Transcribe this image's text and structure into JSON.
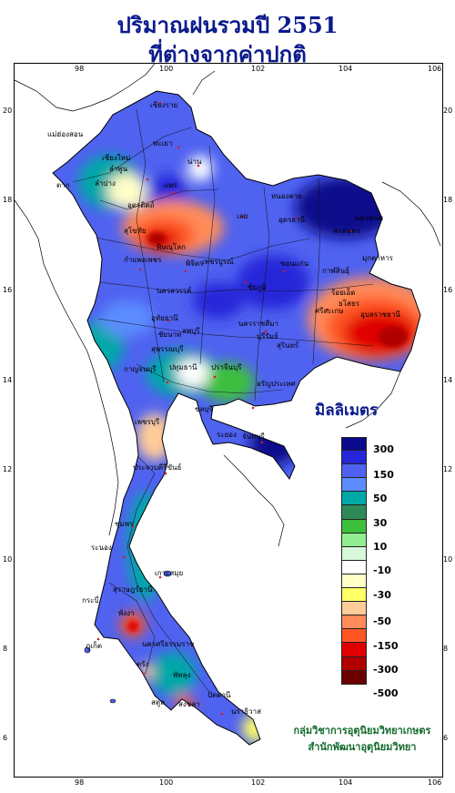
{
  "title": {
    "line1": "ปริมาณฝนรวมปี  2551",
    "line2": "ที่ต่างจากค่าปกติ"
  },
  "axes": {
    "x_ticks": [
      "98",
      "100",
      "102",
      "104",
      "106"
    ],
    "y_ticks": [
      "20",
      "18",
      "16",
      "14",
      "12",
      "10",
      "8",
      "6"
    ]
  },
  "legend": {
    "title": "มิลลิเมตร",
    "classes": [
      {
        "color": "#0a0a8c"
      },
      {
        "color": "#2626d9"
      },
      {
        "color": "#4f62f0"
      },
      {
        "color": "#5c8cff"
      },
      {
        "color": "#00a8a8"
      },
      {
        "color": "#2e8b57"
      },
      {
        "color": "#3dbf3d"
      },
      {
        "color": "#90ee90"
      },
      {
        "color": "#d9f7d9"
      },
      {
        "color": "#ffffff"
      },
      {
        "color": "#ffffc8"
      },
      {
        "color": "#ffff66"
      },
      {
        "color": "#ffcc99"
      },
      {
        "color": "#ff8c5a"
      },
      {
        "color": "#ff5522"
      },
      {
        "color": "#e00000"
      },
      {
        "color": "#b00000"
      },
      {
        "color": "#6a0000"
      }
    ],
    "labels": [
      "300",
      "150",
      "50",
      "30",
      "10",
      "-10",
      "-30",
      "-50",
      "-150",
      "-300",
      "-500"
    ]
  },
  "places": [
    "เชียงราย",
    "แม่ฮ่องสอน",
    "เชียงใหม่",
    "ลำพูน",
    "พะเยา",
    "น่าน",
    "ลำปาง",
    "แพร่",
    "อุตรดิตถ์",
    "ตาก",
    "สุโขทัย",
    "พิษณุโลก",
    "กำแพงเพชร",
    "พิจิตร",
    "เพชรบูรณ์",
    "เลย",
    "หนองคาย",
    "อุดรธานี",
    "นครพนม",
    "สกลนคร",
    "มุกดาหาร",
    "ขอนแก่น",
    "กาฬสินธุ์",
    "ร้อยเอ็ด",
    "ยโสธร",
    "อุบลราชธานี",
    "ชัยภูมิ",
    "นครสวรรค์",
    "อุทัยธานี",
    "ชัยนาท",
    "ลพบุรี",
    "นครราชสีมา",
    "บุรีรัมย์",
    "สุรินทร์",
    "ศรีสะเกษ",
    "สุพรรณบุรี",
    "กาญจนบุรี",
    "ปทุมธานี",
    "ปราจีนบุรี",
    "อรัญประเทศ",
    "ชลบุรี",
    "ระยอง",
    "จันทบุรี",
    "เพชรบุรี",
    "ประจวบคีรีขันธ์",
    "ชุมพร",
    "ระนอง",
    "สุราษฎร์ธานี",
    "เกาะสมุย",
    "กระบี่",
    "พังงา",
    "ภูเก็ต",
    "นครศรีธรรมราช",
    "ตรัง",
    "พัทลุง",
    "สงขลา",
    "สตูล",
    "ปัตตานี",
    "นราธิวาส"
  ],
  "credit": {
    "line1": "กลุ่มวิชาการอุตุนิยมวิทยาเกษตร",
    "line2": "สำนักพัฒนาอุตุนิยมวิทยา"
  }
}
